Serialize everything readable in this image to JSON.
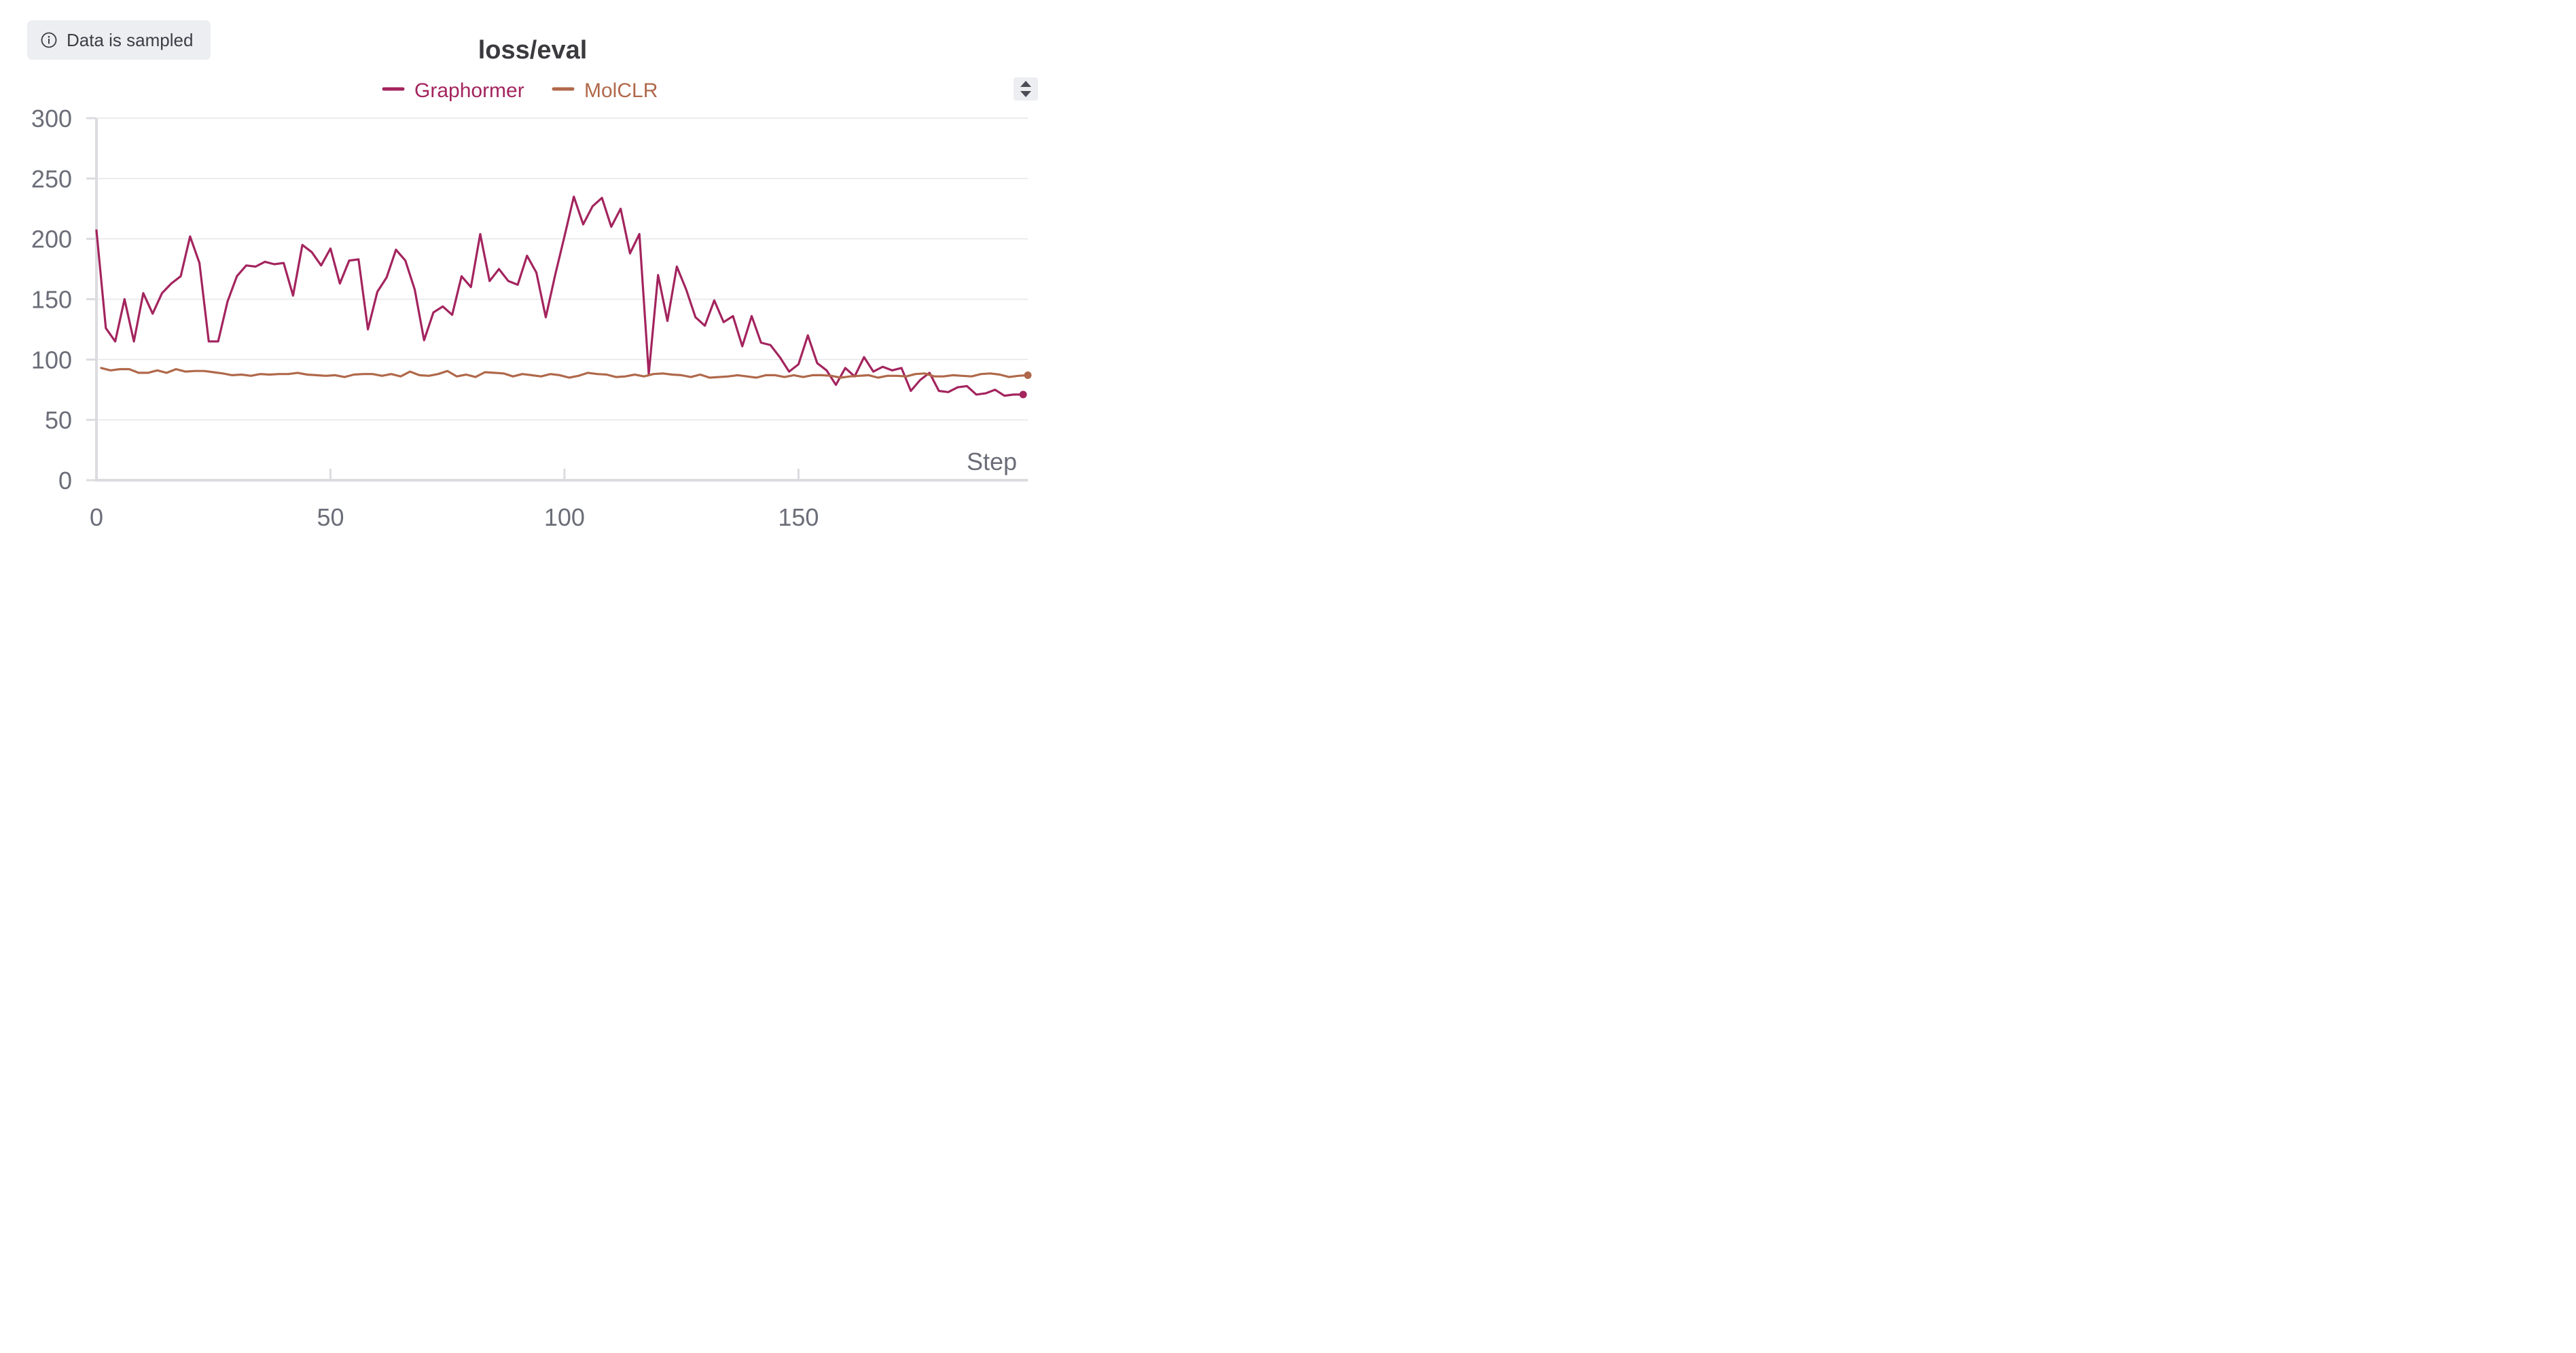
{
  "badge": {
    "text": "Data is sampled",
    "icon": "info-icon"
  },
  "controls": {
    "sort_icon": "sort-arrows-icon"
  },
  "colors": {
    "grid": "#e6e6e9",
    "axis": "#dcdce0",
    "tick_text": "#6b6d78",
    "title": "#3a3a3f"
  },
  "chart_data": {
    "type": "line",
    "title": "loss/eval",
    "xlabel": "Step",
    "ylabel": "",
    "xlim": [
      0,
      199
    ],
    "ylim": [
      0,
      300
    ],
    "xticks": [
      0,
      50,
      100,
      150
    ],
    "yticks": [
      0,
      50,
      100,
      150,
      200,
      250,
      300
    ],
    "grid": true,
    "legend_position": "top-center",
    "series": [
      {
        "name": "Graphormer",
        "color": "#a3245e",
        "x": [
          0,
          2,
          4,
          6,
          8,
          10,
          12,
          14,
          16,
          18,
          20,
          22,
          24,
          26,
          28,
          30,
          32,
          34,
          36,
          38,
          40,
          42,
          44,
          46,
          48,
          50,
          52,
          54,
          56,
          58,
          60,
          62,
          64,
          66,
          68,
          70,
          72,
          74,
          76,
          78,
          80,
          82,
          84,
          86,
          88,
          90,
          92,
          94,
          96,
          98,
          100,
          102,
          104,
          106,
          108,
          110,
          112,
          114,
          116,
          118,
          120,
          122,
          124,
          126,
          128,
          130,
          132,
          134,
          136,
          138,
          140,
          142,
          144,
          146,
          148,
          150,
          152,
          154,
          156,
          158,
          160,
          162,
          164,
          166,
          168,
          170,
          172,
          174,
          176,
          178,
          180,
          182,
          184,
          186,
          188,
          190,
          192,
          194,
          196,
          198
        ],
        "values": [
          207,
          126,
          115,
          150,
          115,
          155,
          138,
          155,
          163,
          169,
          202,
          180,
          115,
          115,
          148,
          169,
          178,
          177,
          181,
          179,
          180,
          153,
          195,
          189,
          178,
          192,
          163,
          182,
          183,
          125,
          156,
          168,
          191,
          182,
          158,
          116,
          139,
          144,
          137,
          169,
          160,
          204,
          165,
          175,
          165,
          162,
          186,
          172,
          135,
          170,
          202,
          235,
          212,
          227,
          234,
          210,
          225,
          188,
          204,
          88,
          170,
          132,
          177,
          158,
          135,
          128,
          149,
          131,
          136,
          111,
          136,
          114,
          112,
          102,
          90,
          96,
          120,
          97,
          91,
          79,
          93,
          86,
          102,
          90,
          94,
          91,
          93,
          74,
          83,
          89,
          74,
          73,
          77,
          78,
          71,
          72,
          75,
          70,
          71,
          71
        ]
      },
      {
        "name": "MolCLR",
        "color": "#b0684a",
        "x": [
          1,
          3,
          5,
          7,
          9,
          11,
          13,
          15,
          17,
          19,
          21,
          23,
          25,
          27,
          29,
          31,
          33,
          35,
          37,
          39,
          41,
          43,
          45,
          47,
          49,
          51,
          53,
          55,
          57,
          59,
          61,
          63,
          65,
          67,
          69,
          71,
          73,
          75,
          77,
          79,
          81,
          83,
          85,
          87,
          89,
          91,
          93,
          95,
          97,
          99,
          101,
          103,
          105,
          107,
          109,
          111,
          113,
          115,
          117,
          119,
          121,
          123,
          125,
          127,
          129,
          131,
          133,
          135,
          137,
          139,
          141,
          143,
          145,
          147,
          149,
          151,
          153,
          155,
          157,
          159,
          161,
          163,
          165,
          167,
          169,
          171,
          173,
          175,
          177,
          179,
          181,
          183,
          185,
          187,
          189,
          191,
          193,
          195,
          197,
          199
        ],
        "values": [
          93,
          91,
          92,
          92,
          89,
          89,
          91,
          89,
          92,
          90,
          90.5,
          90.5,
          89.5,
          88.5,
          87,
          87.5,
          86.5,
          88,
          87.5,
          88,
          88,
          89,
          87.5,
          87,
          86.5,
          87,
          85.5,
          87.5,
          88,
          88,
          86.5,
          88,
          86,
          90,
          87,
          86.5,
          88,
          90.5,
          86,
          87.5,
          85.5,
          89.5,
          89,
          88.5,
          86,
          88,
          87,
          86,
          88,
          87,
          85,
          86.5,
          89,
          88,
          87.5,
          85.5,
          86,
          87.5,
          86,
          88,
          88.5,
          87.5,
          87,
          85.5,
          87.5,
          85,
          85.5,
          86,
          87,
          86,
          85,
          87,
          87,
          85.5,
          87,
          85.5,
          87,
          87,
          86.5,
          85,
          86,
          86.5,
          87,
          85,
          86.5,
          86.5,
          86,
          88,
          88.5,
          86,
          86,
          87,
          86.5,
          86,
          88,
          88.5,
          87.5,
          85.5,
          86.5,
          87
        ]
      }
    ]
  }
}
